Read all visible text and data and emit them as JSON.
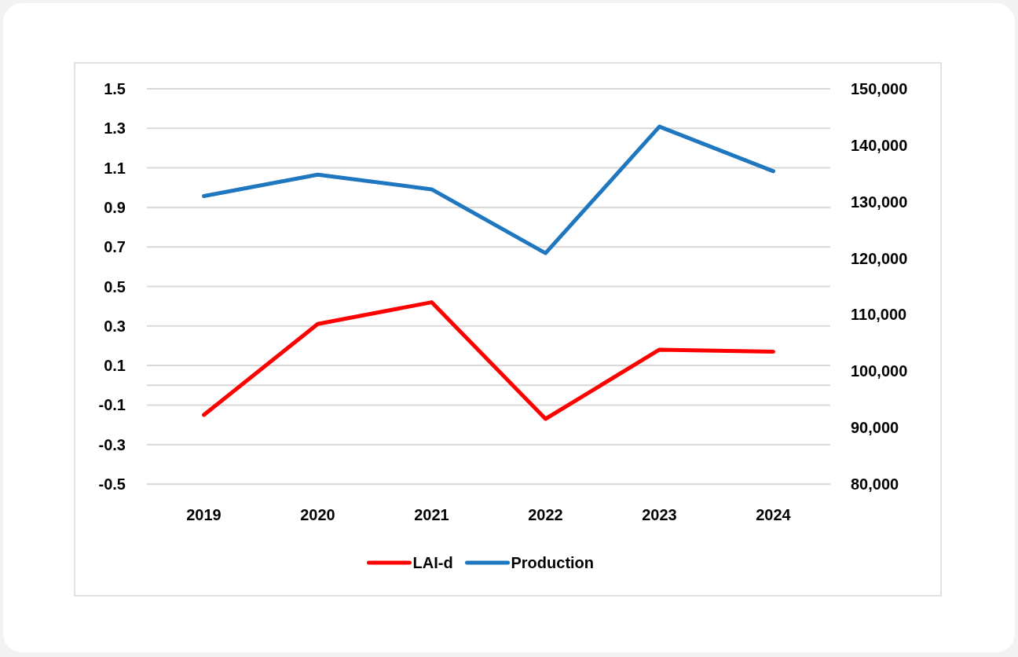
{
  "chart_data": {
    "type": "line",
    "categories": [
      "2019",
      "2020",
      "2021",
      "2022",
      "2023",
      "2024"
    ],
    "series": [
      {
        "name": "LAI-d",
        "color": "#ff0000",
        "values": [
          -0.15,
          0.31,
          0.42,
          -0.17,
          0.18,
          0.17
        ]
      },
      {
        "name": "Production",
        "color": "#1f77c0",
        "axis": "y2",
        "values": [
          131000,
          134800,
          132200,
          120900,
          143300,
          135400
        ]
      }
    ],
    "ylim": [
      -0.5,
      1.5
    ],
    "yticks": [
      -0.5,
      -0.3,
      -0.1,
      0.1,
      0.3,
      0.5,
      0.7,
      0.9,
      1.1,
      1.3,
      1.5
    ],
    "y2lim": [
      80000,
      150000
    ],
    "y2ticks": [
      {
        "value": 80000,
        "label": "80,000"
      },
      {
        "value": 90000,
        "label": "90,000"
      },
      {
        "value": 100000,
        "label": "100,000"
      },
      {
        "value": 110000,
        "label": "110,000"
      },
      {
        "value": 120000,
        "label": "120,000"
      },
      {
        "value": 130000,
        "label": "130,000"
      },
      {
        "value": 140000,
        "label": "140,000"
      },
      {
        "value": 150000,
        "label": "150,000"
      }
    ],
    "grid": "y",
    "legend": "bottom",
    "line_style": "solid",
    "marker": "none"
  }
}
